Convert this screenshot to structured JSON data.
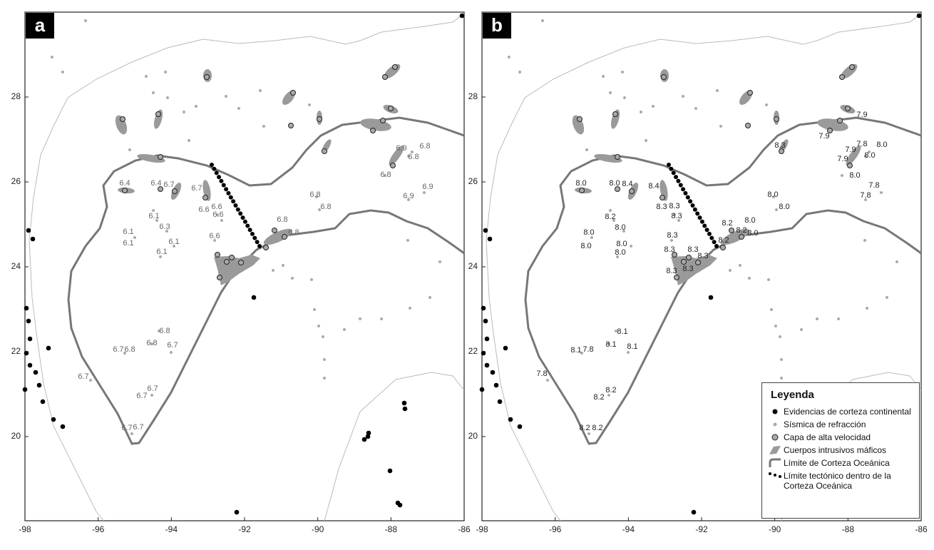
{
  "panels": [
    {
      "letter": "a",
      "labels": [
        "6.4",
        "6.4",
        "6.7",
        "6.7",
        "6.6",
        "6.6",
        "6.6",
        "6.1",
        "6.3",
        "6.1",
        "6.1",
        "6.1",
        "6.1",
        "6.6",
        "6.8",
        "6.8",
        "6.8",
        "6.8",
        "6.9",
        "6.8",
        "6.8",
        "6.8",
        "6.9",
        "6.9",
        "6.8",
        "6.8",
        "6.7",
        "6.7",
        "6.8",
        "6.7",
        "6.7",
        "6.7",
        "6.7",
        "6.7"
      ]
    },
    {
      "letter": "b",
      "labels": [
        "8.0",
        "8.0",
        "8.4",
        "8.4",
        "8.3",
        "8.3",
        "8.3",
        "8.2",
        "8.0",
        "8.0",
        "8.0",
        "8.0",
        "8.0",
        "8.3",
        "8.3",
        "8.3",
        "8.3",
        "8.3",
        "8.3",
        "8.2",
        "8.0",
        "8.2",
        "8.0",
        "8.2",
        "8.0",
        "8.0",
        "8.3",
        "7.9",
        "7.9",
        "7.8",
        "8.0",
        "7.9",
        "8.0",
        "7.9",
        "8.0",
        "7.8",
        "7.8",
        "8.1",
        "8.1",
        "8.1",
        "8.1",
        "7.8",
        "7.8",
        "8.2",
        "8.2",
        "8.2",
        "8.2"
      ]
    }
  ],
  "axes": {
    "xticks": [
      "-98",
      "-96",
      "-94",
      "-92",
      "-90",
      "-88",
      "-86"
    ],
    "yticks": [
      "28",
      "26",
      "24",
      "22",
      "20"
    ]
  },
  "legend": {
    "title": "Leyenda",
    "items": [
      "Evidencias de corteza continental",
      "Sísmica de refracción",
      "Capa de alta velocidad",
      "Cuerpos intrusivos máficos",
      "Límite de Corteza Oceánica",
      "Límite tectónico dentro de la Corteza Oceánica"
    ]
  }
}
